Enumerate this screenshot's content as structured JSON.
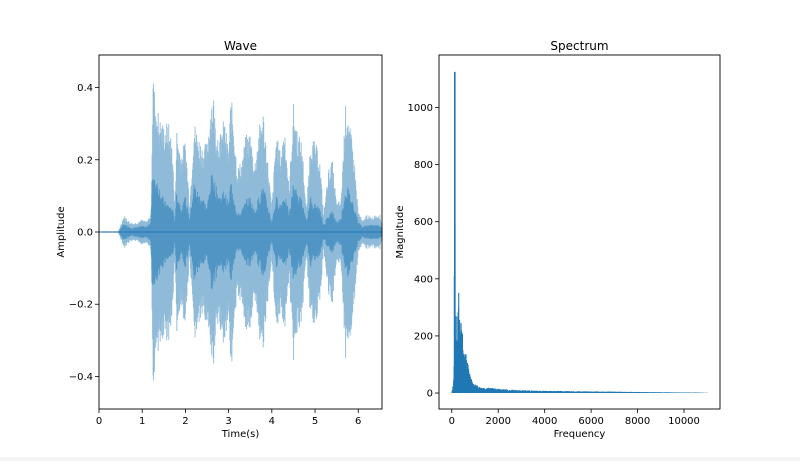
{
  "chart_data": [
    {
      "type": "area",
      "title": "Wave",
      "xlabel": "Time(s)",
      "ylabel": "Amplitude",
      "xlim": [
        0,
        6.55
      ],
      "ylim": [
        -0.49,
        0.49
      ],
      "xticks": [
        0,
        1,
        2,
        3,
        4,
        5,
        6
      ],
      "xtick_labels": [
        "0",
        "1",
        "2",
        "3",
        "4",
        "5",
        "6"
      ],
      "yticks": [
        0.4,
        0.2,
        0.0,
        -0.2,
        -0.4
      ],
      "ytick_labels": [
        "0.4",
        "0.2",
        "0.0",
        "−0.2",
        "−0.4"
      ],
      "color": "#1f77b4",
      "envelope": {
        "t": [
          0,
          0.45,
          0.5,
          0.55,
          0.6,
          0.7,
          0.8,
          0.9,
          1.0,
          1.1,
          1.2,
          1.25,
          1.3,
          1.4,
          1.5,
          1.6,
          1.7,
          1.75,
          1.8,
          1.9,
          2.0,
          2.1,
          2.2,
          2.3,
          2.4,
          2.5,
          2.6,
          2.65,
          2.7,
          2.8,
          2.9,
          3.0,
          3.05,
          3.1,
          3.2,
          3.3,
          3.4,
          3.5,
          3.6,
          3.7,
          3.8,
          3.9,
          4.0,
          4.1,
          4.2,
          4.3,
          4.4,
          4.5,
          4.6,
          4.7,
          4.8,
          4.9,
          5.0,
          5.1,
          5.2,
          5.3,
          5.4,
          5.5,
          5.6,
          5.7,
          5.75,
          5.8,
          5.9,
          6.0,
          6.1,
          6.2,
          6.3,
          6.4,
          6.5,
          6.55
        ],
        "peak": [
          0.002,
          0.002,
          0.02,
          0.04,
          0.045,
          0.03,
          0.025,
          0.03,
          0.035,
          0.03,
          0.05,
          0.45,
          0.38,
          0.32,
          0.3,
          0.31,
          0.25,
          0.07,
          0.29,
          0.22,
          0.26,
          0.08,
          0.31,
          0.27,
          0.24,
          0.25,
          0.38,
          0.39,
          0.3,
          0.27,
          0.32,
          0.23,
          0.38,
          0.34,
          0.18,
          0.2,
          0.27,
          0.28,
          0.19,
          0.29,
          0.34,
          0.21,
          0.07,
          0.28,
          0.22,
          0.3,
          0.12,
          0.36,
          0.28,
          0.25,
          0.06,
          0.27,
          0.25,
          0.22,
          0.05,
          0.17,
          0.2,
          0.08,
          0.09,
          0.35,
          0.36,
          0.3,
          0.22,
          0.06,
          0.03,
          0.05,
          0.04,
          0.05,
          0.05,
          0.02
        ],
        "core": [
          0.001,
          0.001,
          0.01,
          0.02,
          0.022,
          0.015,
          0.012,
          0.015,
          0.017,
          0.015,
          0.03,
          0.18,
          0.16,
          0.13,
          0.09,
          0.08,
          0.07,
          0.03,
          0.12,
          0.07,
          0.1,
          0.04,
          0.14,
          0.11,
          0.1,
          0.07,
          0.16,
          0.16,
          0.13,
          0.1,
          0.12,
          0.08,
          0.15,
          0.12,
          0.05,
          0.06,
          0.09,
          0.1,
          0.06,
          0.1,
          0.13,
          0.08,
          0.03,
          0.1,
          0.08,
          0.11,
          0.05,
          0.14,
          0.11,
          0.09,
          0.03,
          0.1,
          0.08,
          0.07,
          0.02,
          0.05,
          0.06,
          0.03,
          0.04,
          0.12,
          0.13,
          0.11,
          0.08,
          0.03,
          0.015,
          0.02,
          0.02,
          0.02,
          0.02,
          0.01
        ]
      }
    },
    {
      "type": "line",
      "title": "Spectrum",
      "xlabel": "Frequency",
      "ylabel": "Magnitude",
      "xlim": [
        -550,
        11550
      ],
      "ylim": [
        -56,
        1184
      ],
      "xticks": [
        0,
        2000,
        4000,
        6000,
        8000,
        10000
      ],
      "xtick_labels": [
        "0",
        "2000",
        "4000",
        "6000",
        "8000",
        "10000"
      ],
      "yticks": [
        0,
        200,
        400,
        600,
        800,
        1000
      ],
      "ytick_labels": [
        "0",
        "200",
        "400",
        "600",
        "800",
        "1000"
      ],
      "color": "#1f77b4",
      "envelope": {
        "x": [
          0,
          60,
          100,
          130,
          150,
          170,
          200,
          250,
          300,
          340,
          380,
          420,
          460,
          500,
          550,
          600,
          650,
          700,
          750,
          800,
          900,
          1000,
          1200,
          1500,
          2000,
          2500,
          3000,
          4000,
          5000,
          6000,
          7000,
          8000,
          9000,
          10000,
          10500,
          11000
        ],
        "max": [
          0,
          30,
          110,
          1125,
          350,
          220,
          300,
          260,
          370,
          330,
          260,
          240,
          220,
          160,
          170,
          150,
          120,
          110,
          90,
          60,
          40,
          30,
          25,
          20,
          15,
          12,
          10,
          8,
          7,
          6,
          5,
          4,
          3,
          2,
          2,
          1
        ]
      }
    }
  ]
}
